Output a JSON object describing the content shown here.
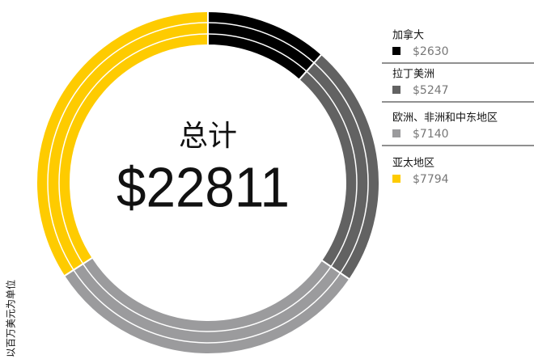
{
  "chart_data": {
    "type": "pie",
    "center_title": "总计",
    "total": 22811,
    "total_label": "$22811",
    "note": "以百万美元为单位",
    "categories": [
      "加拿大",
      "拉丁美洲",
      "欧洲、非洲和中东地区",
      "亚太地区"
    ],
    "values": [
      2630,
      5247,
      7140,
      7794
    ],
    "value_labels": [
      "$2630",
      "$5247",
      "$7140",
      "$7794"
    ],
    "colors": [
      "#000000",
      "#626262",
      "#9b9b9d",
      "#fecb00"
    ]
  }
}
